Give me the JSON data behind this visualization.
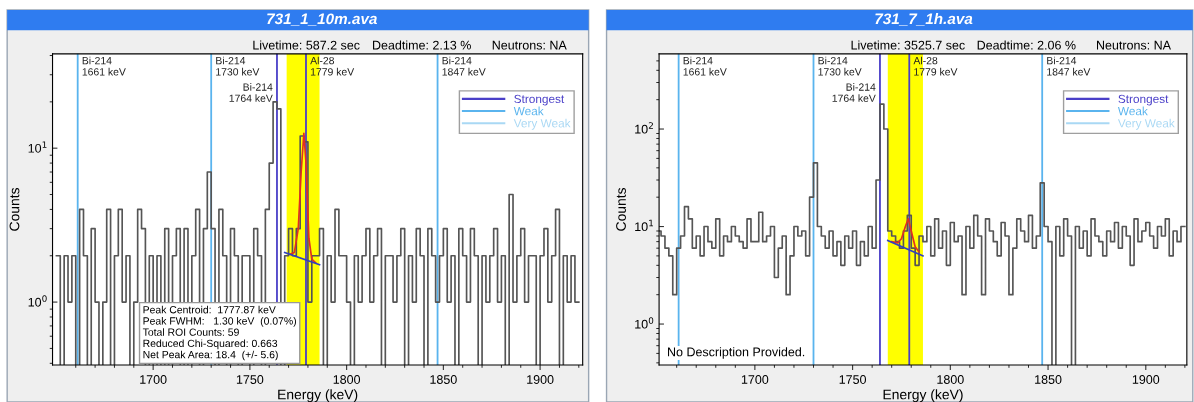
{
  "chart_data": [
    {
      "type": "step",
      "title": "731_1_10m.ava",
      "xlabel": "Energy (keV)",
      "ylabel": "Counts",
      "annotations": [
        "Livetime: 587.2 sec",
        "Deadtime: 2.13 %",
        "Neutrons: NA",
        "Peak Centroid:  1777.87 keV\nPeak FWHM:   1.30 keV  (0.07%)\nTotal ROI Counts: 59\nReduced Chi-Squared: 0.663\nNet Peak Area: 18.4  (+/- 5.6)"
      ],
      "xlim": [
        1648,
        1922
      ],
      "ylim": [
        0.39,
        41
      ],
      "log": "y",
      "legend": "top right",
      "grid": false,
      "xticks": [
        {
          "value": 1660,
          "label": null
        },
        {
          "value": 1670,
          "label": null
        },
        {
          "value": 1680,
          "label": null
        },
        {
          "value": 1690,
          "label": null
        },
        1700,
        {
          "value": 1710,
          "label": null
        },
        {
          "value": 1720,
          "label": null
        },
        {
          "value": 1730,
          "label": null
        },
        {
          "value": 1740,
          "label": null
        },
        1750,
        {
          "value": 1760,
          "label": null
        },
        {
          "value": 1770,
          "label": null
        },
        {
          "value": 1780,
          "label": null
        },
        {
          "value": 1790,
          "label": null
        },
        1800,
        {
          "value": 1810,
          "label": null
        },
        {
          "value": 1820,
          "label": null
        },
        {
          "value": 1830,
          "label": null
        },
        {
          "value": 1840,
          "label": null
        },
        1850,
        {
          "value": 1860,
          "label": null
        },
        {
          "value": 1870,
          "label": null
        },
        {
          "value": 1880,
          "label": null
        },
        {
          "value": 1890,
          "label": null
        },
        1900,
        {
          "value": 1910,
          "label": null
        },
        {
          "value": 1920,
          "label": null
        }
      ],
      "yticks": [
        {
          "value": 1,
          "label": "10$^{0}$"
        },
        {
          "value": 10,
          "label": "10$^{1}$"
        }
      ],
      "bands": [
        {
          "axis": "x",
          "from": 1769,
          "to": 1786,
          "color": "#ffff00"
        }
      ],
      "ref_lines": [
        {
          "axis": "x",
          "value": 1661,
          "label": "Bi-214\n1661 keV",
          "color": "#5ab4ee"
        },
        {
          "axis": "x",
          "value": 1730,
          "label": "Bi-214\n1730 keV",
          "color": "#5ab4ee"
        },
        {
          "axis": "x",
          "value": 1764,
          "label": "Bi-214\n1764 keV",
          "color": "#4a3fc8"
        },
        {
          "axis": "x",
          "value": 1779,
          "label": "Al-28\n1779 keV",
          "color": "#4a3fc8"
        },
        {
          "axis": "x",
          "value": 1847,
          "label": "Bi-214\n1847 keV",
          "color": "#5ab4ee"
        }
      ],
      "series": [
        {
          "color": "#555555",
          "x": [
            1651,
            1653,
            1655,
            1657,
            1659,
            1661,
            1663,
            1665,
            1667,
            1669,
            1671,
            1673,
            1675,
            1677,
            1679,
            1681,
            1683,
            1685,
            1687,
            1689,
            1691,
            1693,
            1695,
            1697,
            1699,
            1701,
            1703,
            1705,
            1707,
            1709,
            1711,
            1713,
            1715,
            1717,
            1719,
            1721,
            1723,
            1725,
            1727,
            1729,
            1731,
            1733,
            1735,
            1737,
            1739,
            1741,
            1743,
            1745,
            1747,
            1749,
            1751,
            1753,
            1755,
            1757,
            1759,
            1761,
            1763,
            1765,
            1767,
            1769,
            1771,
            1773,
            1775,
            1777,
            1779,
            1781,
            1783,
            1785,
            1787,
            1789,
            1791,
            1793,
            1795,
            1797,
            1799,
            1801,
            1803,
            1805,
            1807,
            1809,
            1811,
            1813,
            1815,
            1817,
            1819,
            1821,
            1823,
            1825,
            1827,
            1829,
            1831,
            1833,
            1835,
            1837,
            1839,
            1841,
            1843,
            1845,
            1847,
            1849,
            1851,
            1853,
            1855,
            1857,
            1859,
            1861,
            1863,
            1865,
            1867,
            1869,
            1871,
            1873,
            1875,
            1877,
            1879,
            1881,
            1883,
            1885,
            1887,
            1889,
            1891,
            1893,
            1895,
            1897,
            1899,
            1901,
            1903,
            1905,
            1907,
            1909,
            1911,
            1913,
            1915,
            1917,
            1919
          ],
          "values": [
            2,
            null,
            2,
            1,
            2,
            null,
            4,
            2,
            null,
            3,
            1,
            null,
            1,
            4,
            null,
            2,
            4,
            1,
            2,
            null,
            1,
            4,
            3,
            null,
            2,
            null,
            2,
            null,
            3,
            null,
            2,
            3,
            null,
            3,
            null,
            2,
            4,
            null,
            3,
            7,
            3,
            null,
            4,
            2,
            null,
            3,
            2,
            null,
            2,
            2,
            null,
            3,
            2,
            null,
            4,
            8,
            20,
            18,
            null,
            2,
            3,
            2,
            3,
            12,
            11,
            1,
            2,
            2,
            3,
            null,
            2,
            1,
            4,
            2,
            2,
            1,
            null,
            2,
            1,
            2,
            3,
            1,
            2,
            3,
            null,
            2,
            2,
            1,
            2,
            3,
            null,
            2,
            1,
            3,
            2,
            null,
            3,
            2,
            1,
            2,
            3,
            1,
            2,
            null,
            3,
            2,
            1,
            3,
            2,
            null,
            2,
            1,
            2,
            3,
            1,
            2,
            null,
            5,
            1,
            2,
            3,
            1,
            2,
            2,
            null,
            2,
            3,
            1,
            2,
            4,
            null,
            2,
            1,
            2,
            1
          ]
        },
        {
          "type": "line",
          "color": "#e03020",
          "x": [
            1771,
            1773,
            1775,
            1776.5,
            1777.9,
            1779,
            1780.5,
            1782,
            1784
          ],
          "values": [
            2.05,
            2.1,
            3,
            7,
            12.5,
            8,
            2.6,
            1.9,
            1.8
          ]
        },
        {
          "type": "line",
          "color": "#3040c0",
          "x": [
            1768,
            1786
          ],
          "values": [
            2.1,
            1.75
          ]
        },
        {
          "type": "line",
          "name": "Strongest",
          "color": "#4a3fc8"
        },
        {
          "type": "line",
          "name": "Weak",
          "color": "#5ab4ee"
        },
        {
          "type": "line",
          "name": "Very Weak",
          "color": "#a9d8f4"
        }
      ]
    },
    {
      "type": "step",
      "title": "731_7_1h.ava",
      "xlabel": "Energy (keV)",
      "ylabel": "Counts",
      "annotations": [
        "Livetime: 3525.7 sec",
        "Deadtime: 2.06 %",
        "Neutrons: NA",
        "No Description Provided."
      ],
      "xlim": [
        1651,
        1921
      ],
      "ylim": [
        0.38,
        590
      ],
      "log": "y",
      "legend": "top right",
      "grid": false,
      "xticks": [
        {
          "value": 1660,
          "label": null
        },
        {
          "value": 1670,
          "label": null
        },
        {
          "value": 1680,
          "label": null
        },
        {
          "value": 1690,
          "label": null
        },
        1700,
        {
          "value": 1710,
          "label": null
        },
        {
          "value": 1720,
          "label": null
        },
        {
          "value": 1730,
          "label": null
        },
        {
          "value": 1740,
          "label": null
        },
        1750,
        {
          "value": 1760,
          "label": null
        },
        {
          "value": 1770,
          "label": null
        },
        {
          "value": 1780,
          "label": null
        },
        {
          "value": 1790,
          "label": null
        },
        1800,
        {
          "value": 1810,
          "label": null
        },
        {
          "value": 1820,
          "label": null
        },
        {
          "value": 1830,
          "label": null
        },
        {
          "value": 1840,
          "label": null
        },
        1850,
        {
          "value": 1860,
          "label": null
        },
        {
          "value": 1870,
          "label": null
        },
        {
          "value": 1880,
          "label": null
        },
        {
          "value": 1890,
          "label": null
        },
        1900,
        {
          "value": 1910,
          "label": null
        },
        {
          "value": 1920,
          "label": null
        }
      ],
      "yticks": [
        {
          "value": 1,
          "label": "10$^{0}$"
        },
        {
          "value": 10,
          "label": "10$^{1}$"
        },
        {
          "value": 100,
          "label": "10$^{2}$"
        }
      ],
      "bands": [
        {
          "axis": "x",
          "from": 1768,
          "to": 1786,
          "color": "#ffff00"
        }
      ],
      "ref_lines": [
        {
          "axis": "x",
          "value": 1661,
          "label": "Bi-214\n1661 keV",
          "color": "#5ab4ee"
        },
        {
          "axis": "x",
          "value": 1730,
          "label": "Bi-214\n1730 keV",
          "color": "#5ab4ee"
        },
        {
          "axis": "x",
          "value": 1764,
          "label": "Bi-214\n1764 keV",
          "color": "#4a3fc8"
        },
        {
          "axis": "x",
          "value": 1779,
          "label": "Al-28\n1779 keV",
          "color": "#4a3fc8"
        },
        {
          "axis": "x",
          "value": 1847,
          "label": "Bi-214\n1847 keV",
          "color": "#5ab4ee"
        }
      ],
      "series": [
        {
          "color": "#555555",
          "x": [
            1651,
            1653,
            1655,
            1657,
            1659,
            1661,
            1663,
            1665,
            1667,
            1669,
            1671,
            1673,
            1675,
            1677,
            1679,
            1681,
            1683,
            1685,
            1687,
            1689,
            1691,
            1693,
            1695,
            1697,
            1699,
            1701,
            1703,
            1705,
            1707,
            1709,
            1711,
            1713,
            1715,
            1717,
            1719,
            1721,
            1723,
            1725,
            1727,
            1729,
            1731,
            1733,
            1735,
            1737,
            1739,
            1741,
            1743,
            1745,
            1747,
            1749,
            1751,
            1753,
            1755,
            1757,
            1759,
            1761,
            1763,
            1765,
            1767,
            1769,
            1771,
            1773,
            1775,
            1777,
            1779,
            1781,
            1783,
            1785,
            1787,
            1789,
            1791,
            1793,
            1795,
            1797,
            1799,
            1801,
            1803,
            1805,
            1807,
            1809,
            1811,
            1813,
            1815,
            1817,
            1819,
            1821,
            1823,
            1825,
            1827,
            1829,
            1831,
            1833,
            1835,
            1837,
            1839,
            1841,
            1843,
            1845,
            1847,
            1849,
            1851,
            1853,
            1855,
            1857,
            1859,
            1861,
            1863,
            1865,
            1867,
            1869,
            1871,
            1873,
            1875,
            1877,
            1879,
            1881,
            1883,
            1885,
            1887,
            1889,
            1891,
            1893,
            1895,
            1897,
            1899,
            1901,
            1903,
            1905,
            1907,
            1909,
            1911,
            1913,
            1915,
            1917,
            1919
          ],
          "values": [
            9,
            8,
            6,
            5,
            2,
            6,
            8,
            16,
            12,
            6,
            8,
            5,
            10,
            7,
            6,
            12,
            5,
            8,
            7,
            10,
            8,
            7,
            6,
            12,
            7,
            7,
            14,
            7,
            8,
            10,
            3,
            6,
            8,
            2,
            5,
            10,
            8,
            9,
            5,
            20,
            45,
            10,
            8,
            6,
            9,
            5,
            7,
            4,
            8,
            6,
            9,
            4,
            7,
            5,
            10,
            6,
            30,
            180,
            100,
            9,
            8,
            7,
            6,
            9,
            13,
            6,
            4,
            8,
            7,
            10,
            5,
            12,
            6,
            9,
            4,
            11,
            7,
            8,
            2,
            10,
            6,
            13,
            8,
            2,
            12,
            9,
            7,
            5,
            11,
            8,
            2,
            6,
            12,
            9,
            7,
            13,
            6,
            8,
            28,
            10,
            7,
            null,
            10,
            5,
            12,
            8,
            null,
            10,
            6,
            9,
            5,
            12,
            8,
            7,
            5,
            9,
            7,
            11,
            6,
            10,
            8,
            4,
            12,
            7,
            9,
            11,
            8,
            6,
            10,
            8,
            12,
            5,
            9,
            7,
            10
          ]
        },
        {
          "type": "line",
          "color": "#e03020",
          "x": [
            1770,
            1773,
            1775,
            1777,
            1778.5,
            1780,
            1782,
            1784
          ],
          "values": [
            7,
            6.8,
            7.5,
            10,
            12,
            9,
            6.2,
            5.5
          ]
        },
        {
          "type": "line",
          "color": "#3040c0",
          "x": [
            1768,
            1786
          ],
          "values": [
            7.2,
            5
          ]
        },
        {
          "type": "line",
          "name": "Strongest",
          "color": "#4a3fc8"
        },
        {
          "type": "line",
          "name": "Weak",
          "color": "#5ab4ee"
        },
        {
          "type": "line",
          "name": "Very Weak",
          "color": "#a9d8f4"
        }
      ]
    }
  ]
}
